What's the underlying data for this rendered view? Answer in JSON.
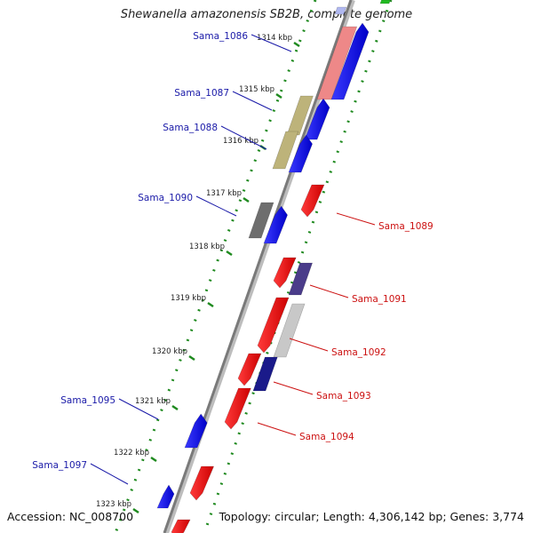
{
  "title": "Shewanella amazonensis SB2B, complete genome",
  "accession": "Accession: NC_008700",
  "summary": "Topology: circular; Length: 4,306,142 bp; Genes: 3,774",
  "colors": {
    "backbone": "#8a8a8a",
    "tick_dots": "#1f8a1f",
    "forward_gene": "#1010ee",
    "reverse_gene": "#ee1111",
    "forward_label": "#1a1aa8",
    "reverse_label": "#cc1111"
  },
  "ticks": [
    "1314 kbp",
    "1315 kbp",
    "1316 kbp",
    "1317 kbp",
    "1318 kbp",
    "1319 kbp",
    "1320 kbp",
    "1321 kbp",
    "1322 kbp",
    "1323 kbp"
  ],
  "gene_labels": [
    {
      "text": "Sama_1086",
      "strand": "forward"
    },
    {
      "text": "Sama_1087",
      "strand": "forward"
    },
    {
      "text": "Sama_1088",
      "strand": "forward"
    },
    {
      "text": "Sama_1090",
      "strand": "forward"
    },
    {
      "text": "Sama_1095",
      "strand": "forward"
    },
    {
      "text": "Sama_1097",
      "strand": "forward"
    },
    {
      "text": "Sama_1089",
      "strand": "reverse"
    },
    {
      "text": "Sama_1091",
      "strand": "reverse"
    },
    {
      "text": "Sama_1092",
      "strand": "reverse"
    },
    {
      "text": "Sama_1093",
      "strand": "reverse"
    },
    {
      "text": "Sama_1094",
      "strand": "reverse"
    }
  ]
}
